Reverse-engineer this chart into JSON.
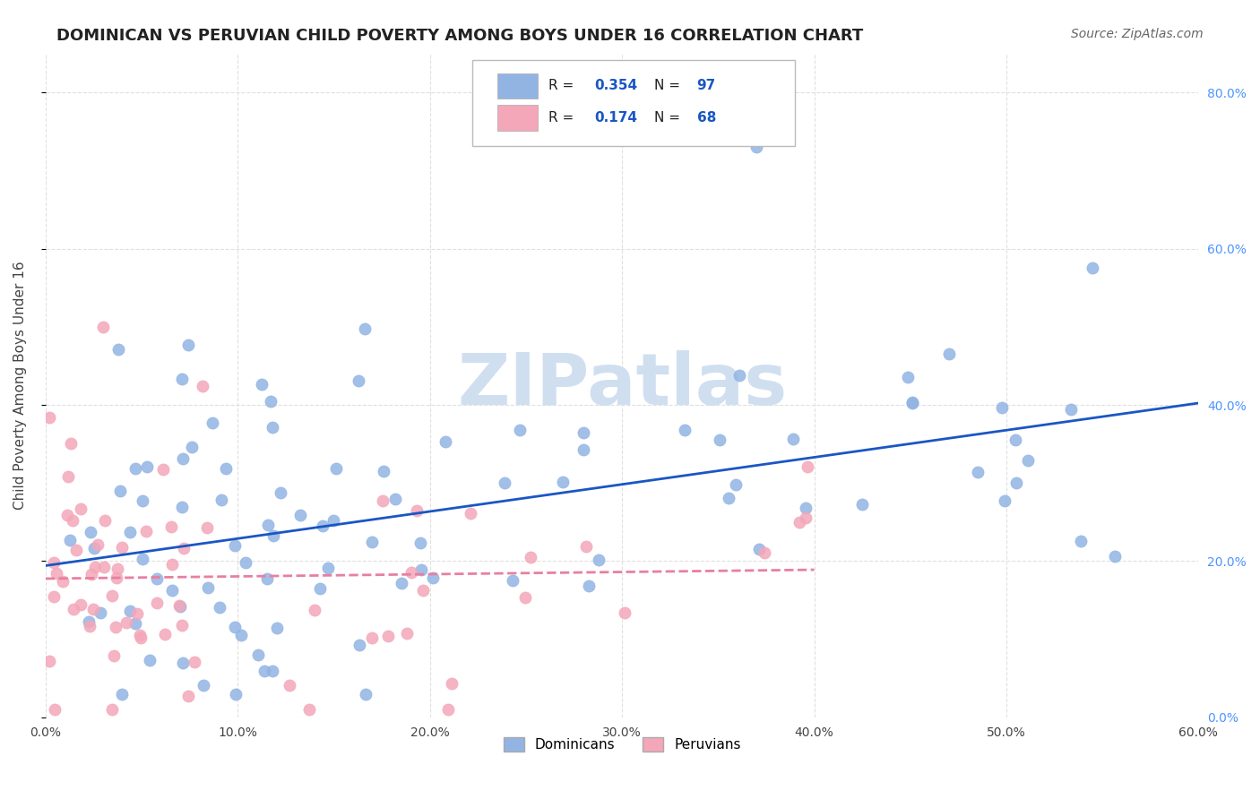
{
  "title": "DOMINICAN VS PERUVIAN CHILD POVERTY AMONG BOYS UNDER 16 CORRELATION CHART",
  "source": "Source: ZipAtlas.com",
  "ylabel": "Child Poverty Among Boys Under 16",
  "xlabel_ticks": [
    "0.0%",
    "10.0%",
    "20.0%",
    "30.0%",
    "40.0%",
    "50.0%",
    "60.0%"
  ],
  "ylabel_ticks": [
    "0.0%",
    "20.0%",
    "40.0%",
    "60.0%",
    "80.0%"
  ],
  "xlim": [
    0.0,
    0.6
  ],
  "ylim": [
    0.0,
    0.85
  ],
  "dominican_R": 0.354,
  "dominican_N": 97,
  "peruvian_R": 0.174,
  "peruvian_N": 68,
  "dominican_color": "#92b4e3",
  "peruvian_color": "#f4a7b9",
  "dominican_line_color": "#1a56c4",
  "peruvian_line_color": "#e87fa0",
  "legend_text_color": "#1a56c4",
  "background_color": "#ffffff",
  "watermark_text": "ZIPatlas",
  "watermark_color": "#d0dff0",
  "title_fontsize": 13,
  "label_fontsize": 11,
  "tick_fontsize": 10,
  "source_fontsize": 10,
  "right_tick_color": "#4d94ff",
  "grid_color": "#e0e0e0"
}
